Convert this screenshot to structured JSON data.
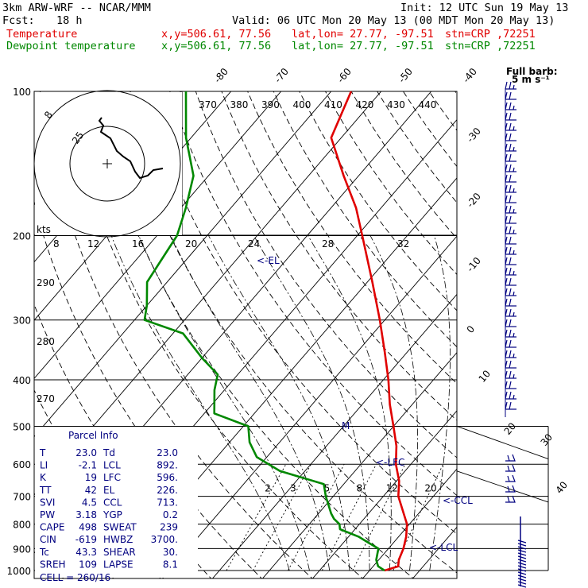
{
  "header": {
    "model": "3km ARW-WRF -- NCAR/MMM",
    "init": "Init: 12 UTC Sun 19 May 13",
    "fcst_label": "Fcst:",
    "fcst_value": "18 h",
    "valid": "Valid: 06 UTC Mon 20 May 13 (00 MDT Mon 20 May 13)",
    "temp_label": "Temperature",
    "dew_label": "Dewpoint temperature",
    "xy": "x,y=506.61, 77.56",
    "latlon": "lat,lon= 27.77, -97.51",
    "stn": "stn=CRP ,72251"
  },
  "colors": {
    "temperature": "#e00000",
    "dewpoint": "#008800",
    "panel": "#000080"
  },
  "barb_label": [
    "Full barb:",
    "5 m s⁻¹"
  ],
  "pressure_ticks": [
    "100",
    "200",
    "300",
    "400",
    "500",
    "600",
    "700",
    "800",
    "900",
    "1000"
  ],
  "skew_labels": [
    "-80",
    "-70",
    "-60",
    "-50",
    "-40",
    "-30",
    "-20",
    "-10",
    "0",
    "10",
    "20",
    "30",
    "40"
  ],
  "theta_labels": [
    "370",
    "380",
    "390",
    "400",
    "410",
    "420",
    "430",
    "440"
  ],
  "dry_labels": [
    "290",
    "280",
    "270"
  ],
  "mix_labels": [
    "2",
    "3",
    "5",
    "8",
    "12",
    "20"
  ],
  "hodo": {
    "units": "kts",
    "scale": [
      "8",
      "12",
      "16",
      "20",
      "24",
      "28",
      "32"
    ],
    "rings": [
      "8",
      "25"
    ]
  },
  "markers": {
    "el": "<-EL",
    "lfc": "<-LFC",
    "ccl": "<-CCL",
    "lcl": "<-LCL",
    "m": "M"
  },
  "panel": {
    "title": "Parcel Info",
    "rows": [
      [
        "T",
        "23.0",
        "Td",
        "23.0"
      ],
      [
        "LI",
        "-2.1",
        "LCL",
        "892."
      ],
      [
        "K",
        "19",
        "LFC",
        "596."
      ],
      [
        "TT",
        "42",
        "EL",
        "226."
      ],
      [
        "SVI",
        "4.5",
        "CCL",
        "713."
      ],
      [
        "PW",
        "3.18",
        "YGP",
        "0.2"
      ],
      [
        "CAPE",
        "498",
        "SWEAT",
        "239"
      ],
      [
        "CIN",
        "-619",
        "HWBZ",
        "3700."
      ],
      [
        "Tc",
        "43.3",
        "SHEAR",
        "30."
      ],
      [
        "SREH",
        "109",
        "LAPSE",
        "8.1"
      ]
    ],
    "cell": "CELL = 260/16"
  },
  "chart_data": {
    "type": "line",
    "title": "",
    "xlabel": "Temperature",
    "ylabel": "Pressure",
    "ylim": [
      1000,
      100
    ],
    "series": [
      {
        "name": "Temperature",
        "points": [
          [
            1000,
            23
          ],
          [
            980,
            25
          ],
          [
            950,
            24
          ],
          [
            900,
            23
          ],
          [
            850,
            21.5
          ],
          [
            800,
            19.5
          ],
          [
            760,
            17
          ],
          [
            700,
            13
          ],
          [
            650,
            10.5
          ],
          [
            600,
            7
          ],
          [
            550,
            4
          ],
          [
            500,
            0
          ],
          [
            450,
            -4.5
          ],
          [
            400,
            -9
          ],
          [
            350,
            -14.5
          ],
          [
            300,
            -21
          ],
          [
            250,
            -29
          ],
          [
            200,
            -39
          ],
          [
            175,
            -45
          ],
          [
            150,
            -53
          ],
          [
            125,
            -62
          ],
          [
            100,
            -66
          ]
        ]
      },
      {
        "name": "Dewpoint temperature",
        "points": [
          [
            1000,
            23
          ],
          [
            980,
            21
          ],
          [
            950,
            19.5
          ],
          [
            900,
            18
          ],
          [
            875,
            15
          ],
          [
            850,
            12
          ],
          [
            820,
            7
          ],
          [
            800,
            6
          ],
          [
            780,
            4
          ],
          [
            760,
            2.5
          ],
          [
            700,
            -1.5
          ],
          [
            660,
            -4
          ],
          [
            620,
            -15
          ],
          [
            580,
            -22
          ],
          [
            540,
            -26
          ],
          [
            500,
            -29
          ],
          [
            470,
            -38
          ],
          [
            420,
            -42
          ],
          [
            390,
            -44
          ],
          [
            360,
            -50
          ],
          [
            320,
            -58
          ],
          [
            300,
            -68
          ],
          [
            280,
            -70
          ],
          [
            250,
            -74
          ],
          [
            200,
            -76
          ],
          [
            175,
            -79
          ],
          [
            150,
            -83
          ],
          [
            125,
            -91
          ],
          [
            100,
            -99
          ]
        ]
      }
    ]
  }
}
